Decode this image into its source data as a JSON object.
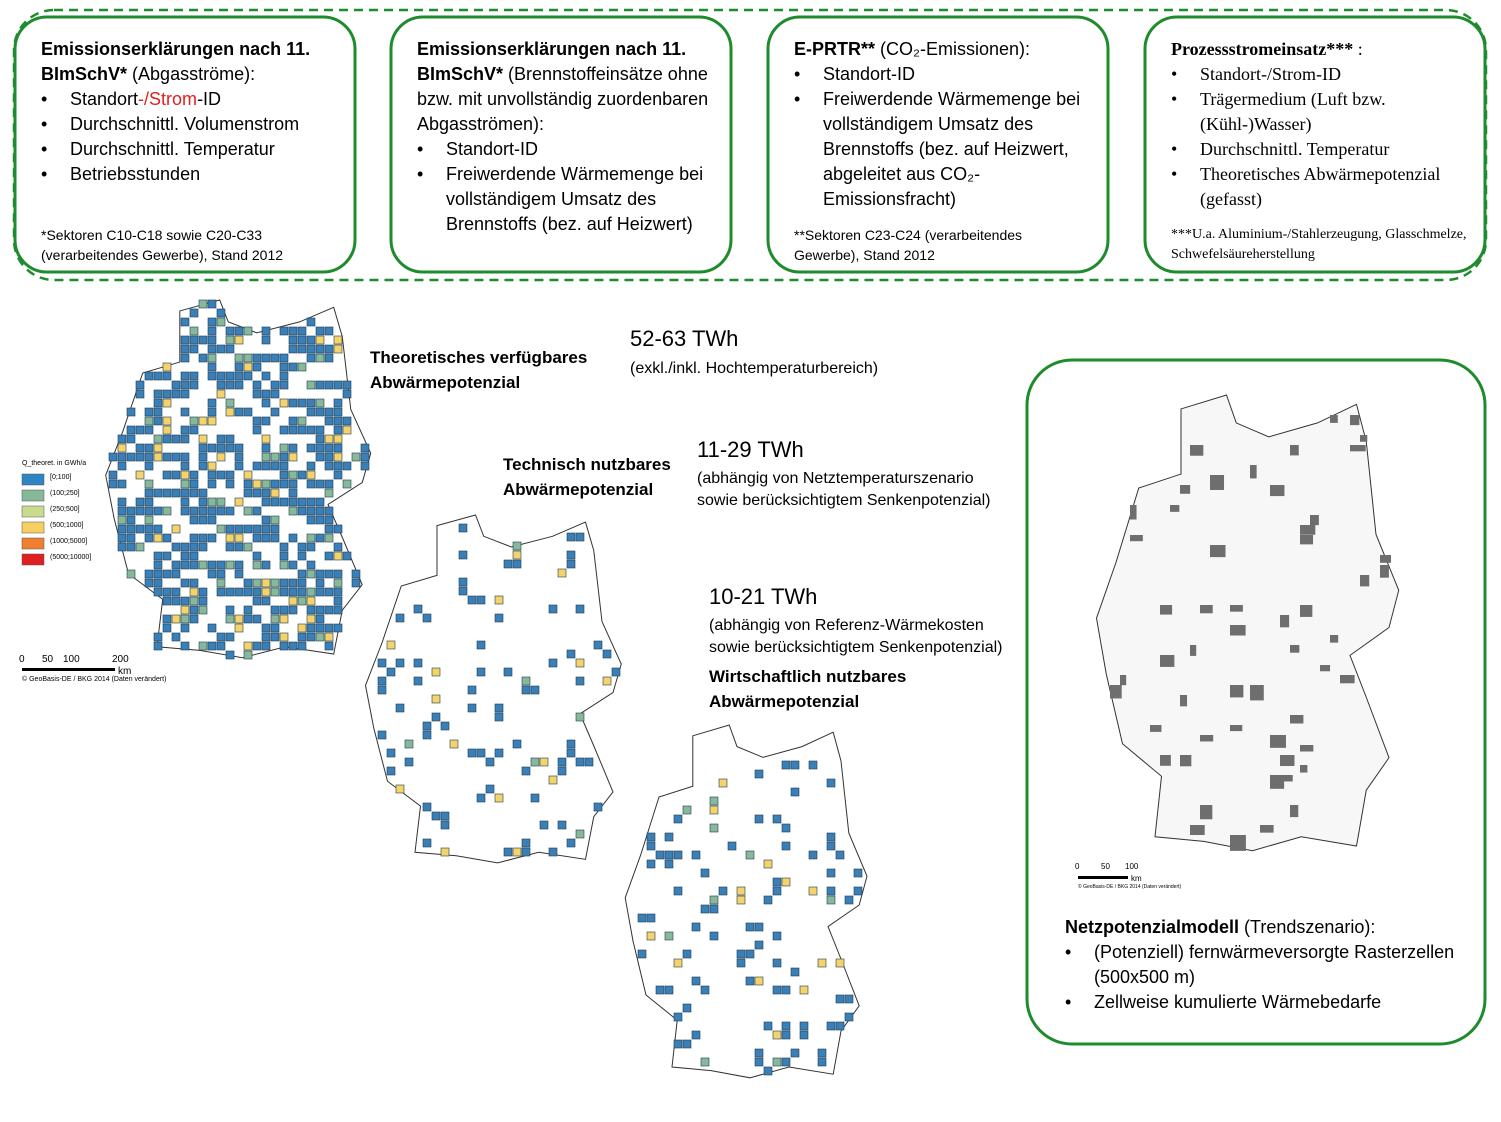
{
  "boxes": [
    {
      "title": "Emissionserklärungen nach 11. BImSchV*",
      "subtitle": "(Abgasströme):",
      "items": [
        [
          "Standort",
          "-/Strom",
          "-ID"
        ],
        "Durchschnittl. Volumenstrom",
        "Durchschnittl. Temperatur",
        "Betriebsstunden"
      ],
      "footnote": "*Sektoren C10-C18 sowie C20-C33 (verarbeitendes Gewerbe), Stand 2012"
    },
    {
      "title": "Emissionserklärungen nach 11. BImSchV*",
      "subtitle": "(Brennstoffeinsätze ohne bzw. mit unvollständig zuordenbaren Abgasströmen):",
      "items": [
        "Standort-ID",
        "Freiwerdende Wärmemenge bei vollständigem Umsatz des Brennstoffs (bez. auf Heizwert)"
      ]
    },
    {
      "title": "E-PRTR**",
      "subtitle": "(CO₂-Emissionen):",
      "items": [
        "Standort-ID",
        "Freiwerdende Wärmemenge bei vollständigem Umsatz des Brennstoffs (bez. auf Heizwert, abgeleitet aus CO₂-Emissionsfracht)"
      ],
      "footnote": "**Sektoren C23-C24 (verarbeitendes Gewerbe), Stand 2012"
    },
    {
      "title": "Prozessstromeinsatz***",
      "subtitle": ":",
      "items": [
        "Standort-/Strom-ID",
        "Trägermedium (Luft bzw. (Kühl-)Wasser)",
        "Durchschnittl. Temperatur",
        "Theoretisches Abwärmepotenzial (gefasst)"
      ],
      "footnote": "***U.a. Aluminium-/Stahlerzeugung, Glasschmelze, Schwefelsäureherstellung"
    }
  ],
  "potentials": [
    {
      "label": [
        "Theoretisches verfügbares",
        "Abwärmepotenzial"
      ],
      "value": "52-63 TWh",
      "note": [
        "(exkl./inkl. Hochtemperaturbereich)"
      ]
    },
    {
      "label": [
        "Technisch nutzbares",
        "Abwärmepotenzial"
      ],
      "value": "11-29 TWh",
      "note": [
        "(abhängig von Netztemperaturszenario",
        "sowie berücksichtigtem Senkenpotenzial)"
      ]
    },
    {
      "label": [
        "Wirtschaftlich nutzbares",
        "Abwärmepotenzial"
      ],
      "value": "10-21 TWh",
      "note": [
        "(abhängig von Referenz-Wärmekosten",
        "sowie berücksichtigtem Senkenpotenzial)"
      ]
    }
  ],
  "legend": {
    "title": "Q_theoret. in GWh/a",
    "classes": [
      "[0;100]",
      "(100;250]",
      "(250;500]",
      "(500;1000]",
      "(1000;5000]",
      "(5000;10000]"
    ]
  },
  "scale_main": {
    "ticks": [
      "0",
      "50",
      "100",
      "200"
    ],
    "unit": "km",
    "credit": "© GeoBasis-DE / BKG 2014 (Daten verändert)"
  },
  "scale_network": {
    "ticks": [
      "0",
      "50",
      "100"
    ],
    "unit": "km",
    "credit": "© GeoBasis-DE / BKG 2014 (Daten verändert)"
  },
  "network": {
    "title": "Netzpotenzialmodell",
    "subtitle": "(Trendszenario):",
    "items": [
      "(Potenziell) fernwärmeversorgte Rasterzellen (500x500 m)",
      "Zellweise kumulierte Wärmebedarfe"
    ]
  }
}
